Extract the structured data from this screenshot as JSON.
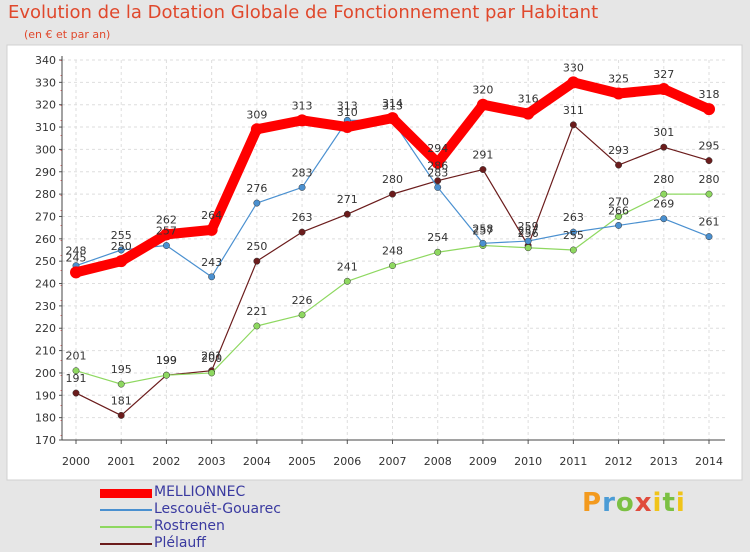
{
  "title": "Evolution de la Dotation Globale de Fonctionnement par Habitant",
  "subtitle": "(en € et par an)",
  "logo_text": "Proxiti",
  "chart_data": {
    "type": "line",
    "title": "Evolution de la Dotation Globale de Fonctionnement par Habitant",
    "subtitle": "(en € et par an)",
    "xlabel": "",
    "ylabel": "",
    "x": [
      2000,
      2001,
      2002,
      2003,
      2004,
      2005,
      2006,
      2007,
      2008,
      2009,
      2010,
      2011,
      2012,
      2013,
      2014
    ],
    "ylim": [
      170,
      340
    ],
    "yticks": [
      170,
      180,
      190,
      200,
      210,
      220,
      230,
      240,
      250,
      260,
      270,
      280,
      290,
      300,
      310,
      320,
      330,
      340
    ],
    "grid": true,
    "legend_position": "bottom-left",
    "series": [
      {
        "name": "MELLIONNEC",
        "color": "#ff0000",
        "values": [
          245,
          250,
          262,
          264,
          309,
          313,
          310,
          314,
          294,
          320,
          316,
          330,
          325,
          327,
          318
        ]
      },
      {
        "name": "Lescouët-Gouarec",
        "color": "#4a90d0",
        "values": [
          248,
          255,
          257,
          243,
          276,
          283,
          313,
          313,
          283,
          258,
          259,
          263,
          266,
          269,
          261
        ]
      },
      {
        "name": "Rostrenen",
        "color": "#8ed860",
        "values": [
          201,
          195,
          199,
          200,
          221,
          226,
          241,
          248,
          254,
          257,
          256,
          255,
          270,
          280,
          280
        ]
      },
      {
        "name": "Plélauff",
        "color": "#6b1c1c",
        "values": [
          191,
          181,
          199,
          201,
          250,
          263,
          271,
          280,
          286,
          291,
          257,
          311,
          293,
          301,
          295
        ]
      }
    ]
  }
}
